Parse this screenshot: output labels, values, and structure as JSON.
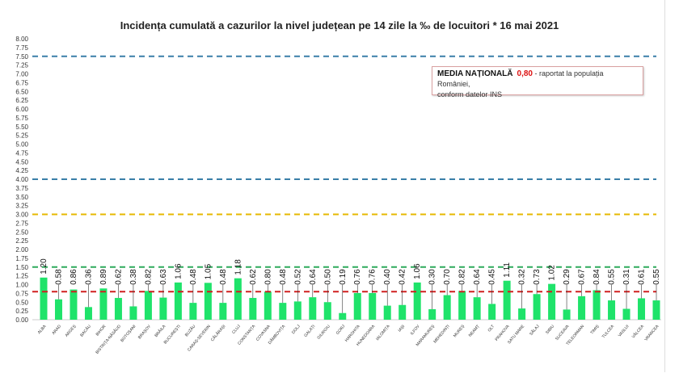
{
  "chart_data": {
    "type": "bar",
    "title": "Incidența cumulată a cazurilor la nivel județean pe 14 zile la ‰ de locuitori *  16 mai 2021",
    "xlabel": "",
    "ylabel": "",
    "ylim": [
      0,
      8
    ],
    "yticks": [
      "0.00",
      "0.25",
      "0.50",
      "0.75",
      "1.00",
      "1.25",
      "1.50",
      "1.75",
      "2.00",
      "2.25",
      "2.50",
      "2.75",
      "3.00",
      "3.25",
      "3.50",
      "3.75",
      "4.00",
      "4.25",
      "4.50",
      "4.75",
      "5.00",
      "5.25",
      "5.50",
      "5.75",
      "6.00",
      "6.25",
      "6.50",
      "6.75",
      "7.00",
      "7.25",
      "7.50",
      "7.75",
      "8.00"
    ],
    "categories": [
      "ALBA",
      "ARAD",
      "ARGEȘ",
      "BACĂU",
      "BIHOR",
      "BISTRIȚA-NĂSĂUD",
      "BOTOȘANI",
      "BRAȘOV",
      "BRĂILA",
      "BUCUREȘTI",
      "BUZĂU",
      "CARAȘ-SEVERIN",
      "CĂLĂRAȘI",
      "CLUJ",
      "CONSTANȚA",
      "COVASNA",
      "DÂMBOVIȚA",
      "DOLJ",
      "GALAȚI",
      "GIURGIU",
      "GORJ",
      "HARGHITA",
      "HUNEDOARA",
      "IALOMIȚA",
      "IAȘI",
      "ILFOV",
      "MARAMUREȘ",
      "MEHEDINȚI",
      "MUREȘ",
      "NEAMȚ",
      "OLT",
      "PRAHOVA",
      "SATU MARE",
      "SĂLAJ",
      "SIBIU",
      "SUCEAVA",
      "TELEORMAN",
      "TIMIȘ",
      "TULCEA",
      "VASLUI",
      "VÂLCEA",
      "VRANCEA"
    ],
    "values": [
      1.2,
      0.58,
      0.86,
      0.36,
      0.89,
      0.62,
      0.38,
      0.82,
      0.63,
      1.06,
      0.48,
      1.05,
      0.48,
      1.18,
      0.62,
      0.8,
      0.48,
      0.52,
      0.64,
      0.5,
      0.19,
      0.76,
      0.76,
      0.4,
      0.42,
      1.06,
      0.3,
      0.7,
      0.82,
      0.64,
      0.45,
      1.11,
      0.32,
      0.73,
      1.02,
      0.29,
      0.67,
      0.84,
      0.55,
      0.31,
      0.61,
      0.55
    ],
    "value_labels": [
      "1.20",
      "0.58",
      "0.86",
      "0.36",
      "0.89",
      "0.62",
      "0.38",
      "0.82",
      "0.63",
      "1.06",
      "0.48",
      "1.05",
      "0.48",
      "1.18",
      "0.62",
      "0.80",
      "0.48",
      "0.52",
      "0.64",
      "0.50",
      "0.19",
      "0.76",
      "0.76",
      "0.40",
      "0.42",
      "1.06",
      "0.30",
      "0.70",
      "0.82",
      "0.64",
      "0.45",
      "1.11",
      "0.32",
      "0.73",
      "1.02",
      "0.29",
      "0.67",
      "0.84",
      "0.55",
      "0.31",
      "0.61",
      "0.55"
    ],
    "reference_lines": [
      {
        "value": 7.5,
        "color": "#3a7fa8"
      },
      {
        "value": 4.0,
        "color": "#3a7fa8"
      },
      {
        "value": 3.0,
        "color": "#e6b800"
      },
      {
        "value": 1.5,
        "color": "#2eaa5c"
      },
      {
        "value": 0.8,
        "color": "#d02020"
      }
    ],
    "bar_color": "#1fe36a",
    "grid": false
  },
  "note": {
    "bold": "MEDIA NAȚIONALĂ",
    "value": "0,80",
    "rest": " - raportat la populația României,",
    "line2": "conform datelor INS"
  }
}
